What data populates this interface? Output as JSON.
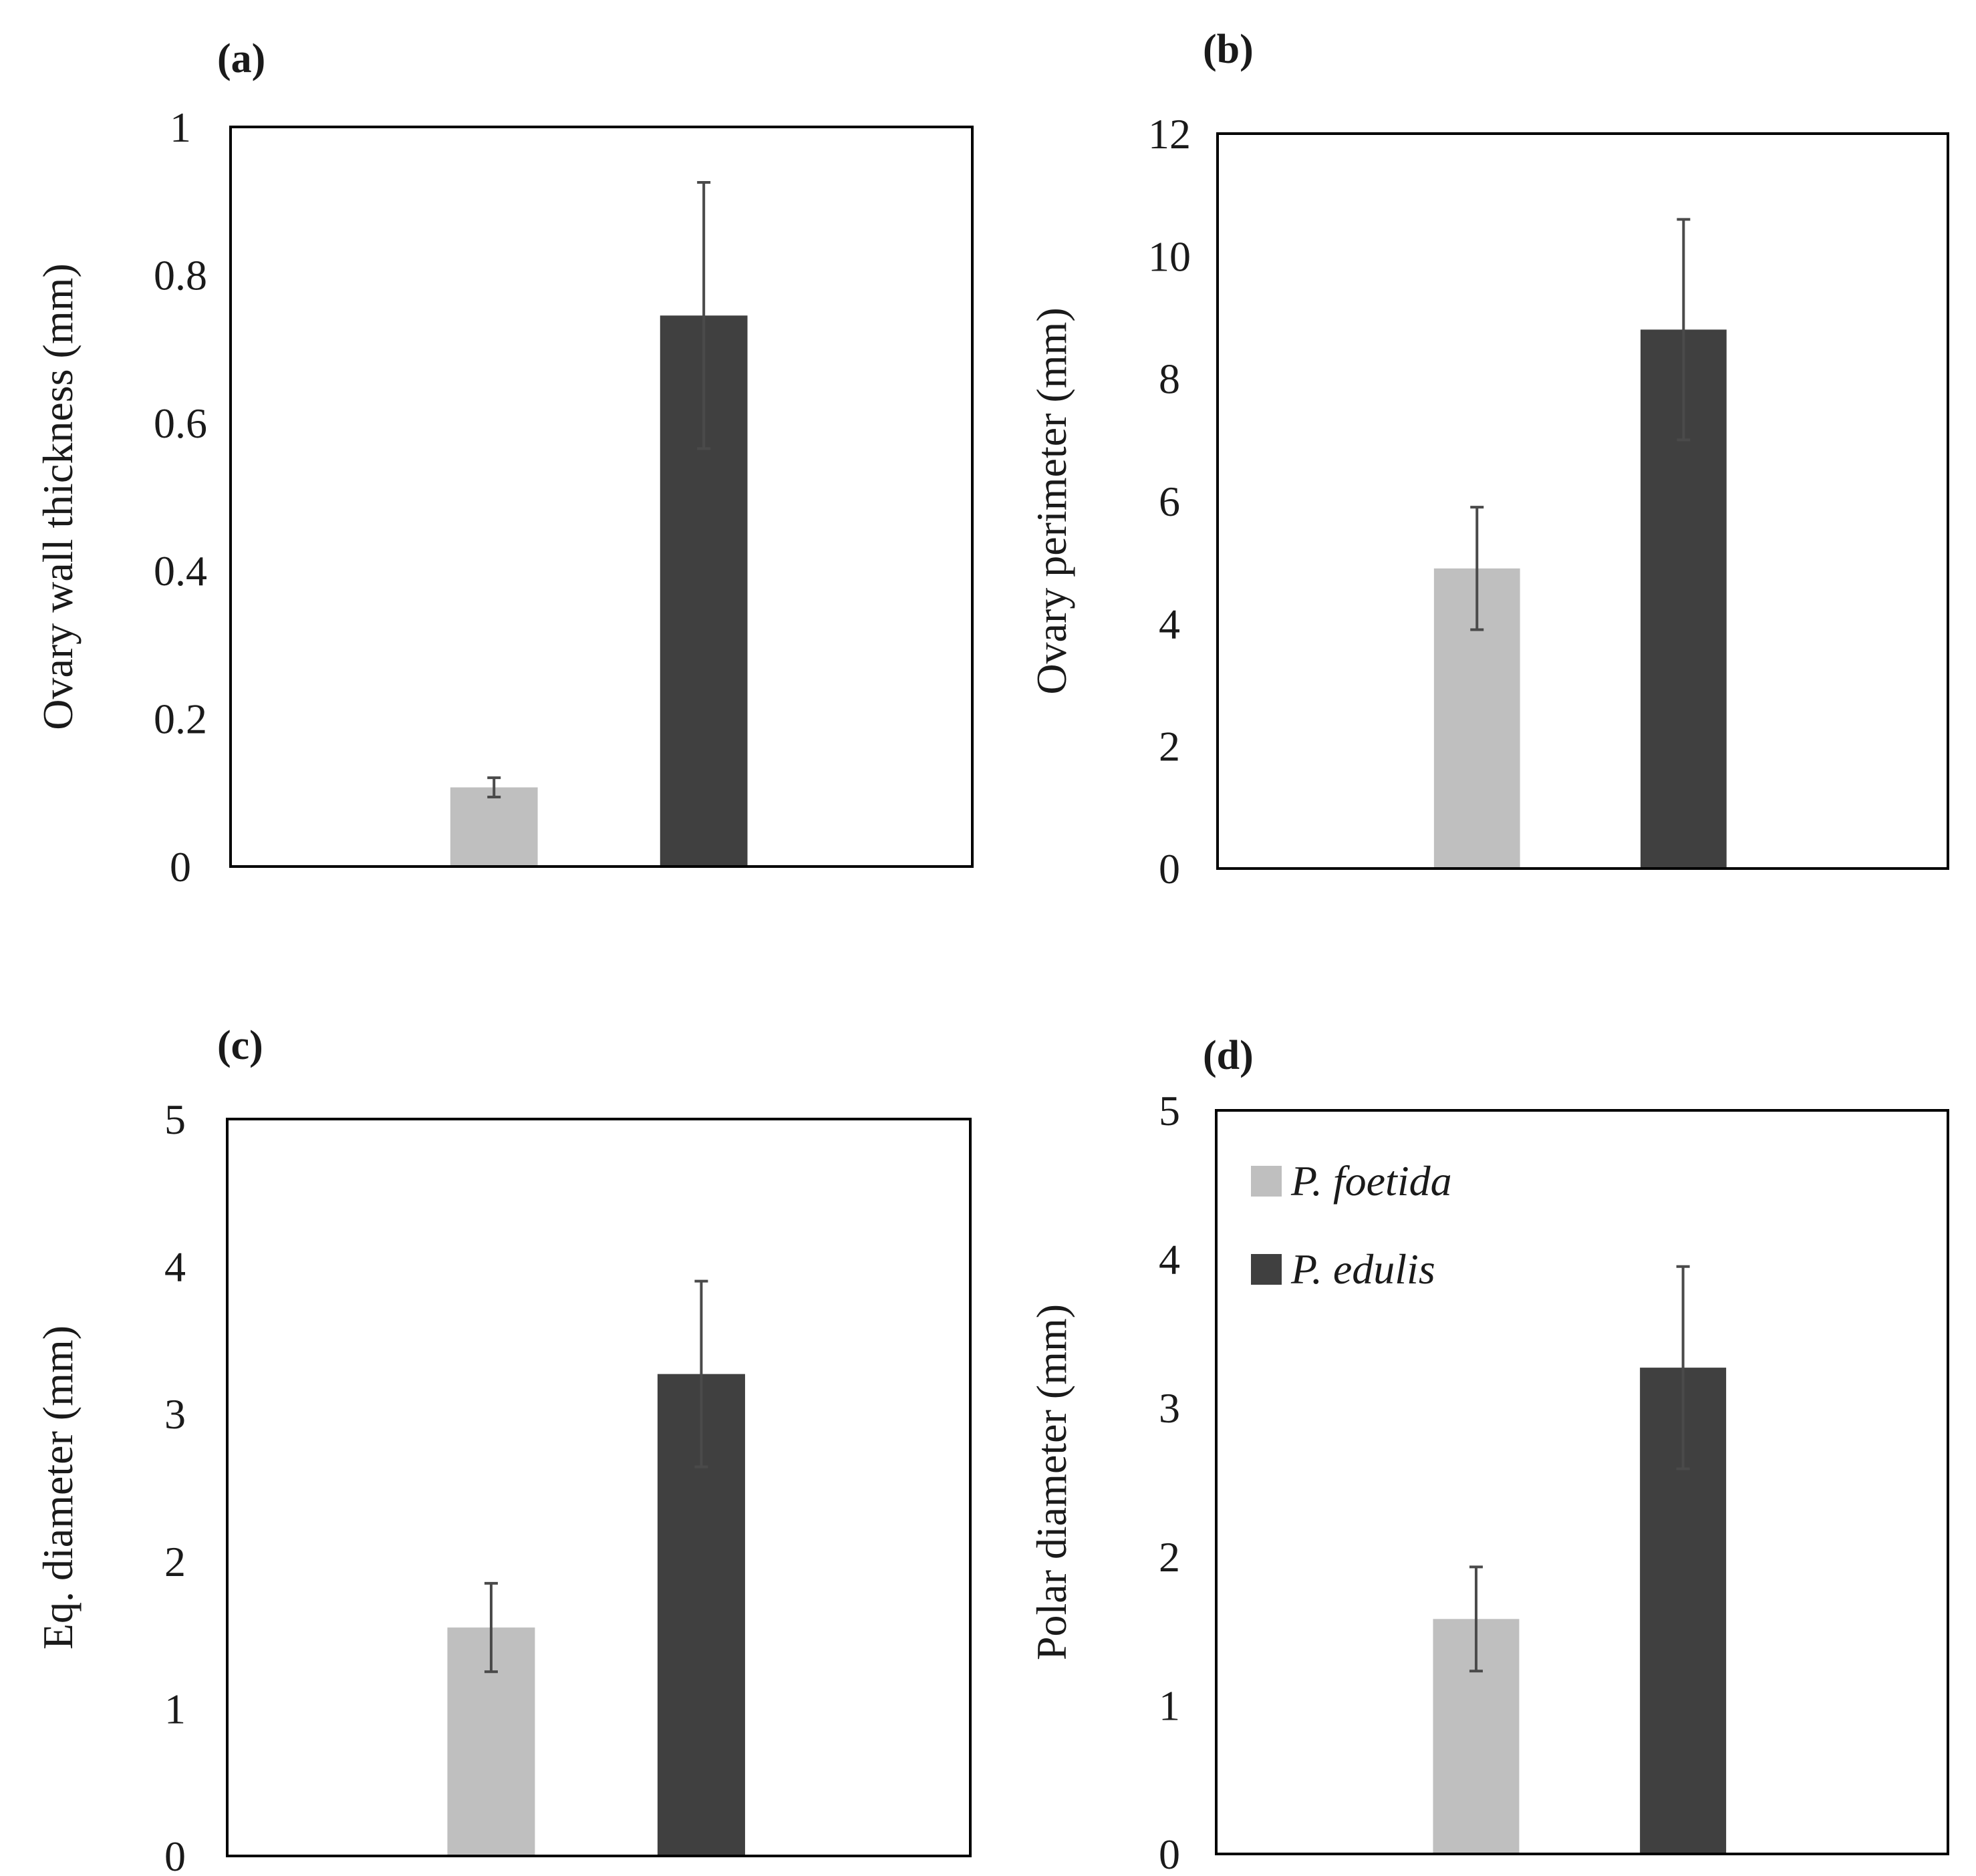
{
  "colors": {
    "P. foetida": "#bfbfbf",
    "P. edulis": "#404040",
    "frame": "#000000",
    "error_bar": "#4a4a4a"
  },
  "chart_data": [
    {
      "panel": "(a)",
      "type": "bar",
      "categories": [
        "P. foetida",
        "P. edulis"
      ],
      "values": [
        0.107,
        0.745
      ],
      "errors": [
        0.013,
        0.18
      ],
      "ylabel": "Ovary wall thickness (mm)",
      "xlabel": "",
      "ylim": [
        0,
        1
      ],
      "yticks": [
        0,
        0.2,
        0.4,
        0.6,
        0.8,
        1
      ],
      "ytick_labels": [
        "0",
        "0.2",
        "0.4",
        "0.6",
        "0.8",
        "1"
      ],
      "legend": false
    },
    {
      "panel": "(b)",
      "type": "bar",
      "categories": [
        "P. foetida",
        "P. edulis"
      ],
      "values": [
        4.9,
        8.8
      ],
      "errors": [
        1.0,
        1.8
      ],
      "ylabel": "Ovary perimeter (mm)",
      "xlabel": "",
      "ylim": [
        0,
        12
      ],
      "yticks": [
        0,
        2,
        4,
        6,
        8,
        10,
        12
      ],
      "ytick_labels": [
        "0",
        "2",
        "4",
        "6",
        "8",
        "10",
        "12"
      ],
      "legend": false
    },
    {
      "panel": "(c)",
      "type": "bar",
      "categories": [
        "P. foetida",
        "P. edulis"
      ],
      "values": [
        1.55,
        3.27
      ],
      "errors": [
        0.3,
        0.63
      ],
      "ylabel": "Eq. diameter (mm)",
      "xlabel": "",
      "ylim": [
        0,
        5
      ],
      "yticks": [
        0,
        1,
        2,
        3,
        4,
        5
      ],
      "ytick_labels": [
        "0",
        "1",
        "2",
        "3",
        "4",
        "5"
      ],
      "legend": false
    },
    {
      "panel": "(d)",
      "type": "bar",
      "categories": [
        "P. foetida",
        "P. edulis"
      ],
      "values": [
        1.58,
        3.27
      ],
      "errors": [
        0.35,
        0.68
      ],
      "ylabel": "Polar diameter (mm)",
      "xlabel": "",
      "ylim": [
        0,
        5
      ],
      "yticks": [
        0,
        1,
        2,
        3,
        4,
        5
      ],
      "ytick_labels": [
        "0",
        "1",
        "2",
        "3",
        "4",
        "5"
      ],
      "legend": true,
      "legend_position": "top-left",
      "legend_entries": [
        "P. foetida",
        "P. edulis"
      ]
    }
  ]
}
